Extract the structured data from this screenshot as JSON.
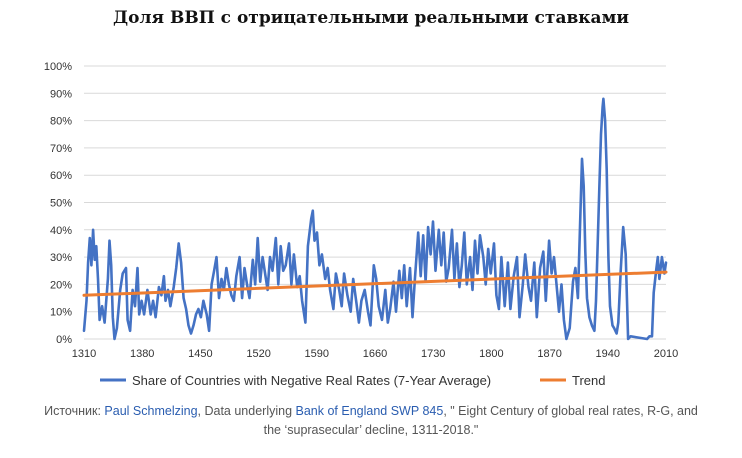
{
  "chart_data": {
    "type": "line",
    "title": "Доля ВВП с отрицательными реальными ставками",
    "xlabel": "",
    "ylabel": "",
    "xlim": [
      1311,
      2018
    ],
    "ylim": [
      0,
      100
    ],
    "x_ticks": [
      "1310",
      "1380",
      "1450",
      "1520",
      "1590",
      "1660",
      "1730",
      "1800",
      "1870",
      "1940",
      "2010"
    ],
    "y_ticks": [
      "0%",
      "10%",
      "20%",
      "30%",
      "40%",
      "50%",
      "60%",
      "70%",
      "80%",
      "90%",
      "100%"
    ],
    "grid": true,
    "legend_position": "bottom",
    "series": [
      {
        "name": "Share of Countries with Negative Real Rates (7-Year Average)",
        "color": "#4472c4",
        "points": [
          [
            1311,
            3
          ],
          [
            1314,
            14
          ],
          [
            1316,
            28
          ],
          [
            1318,
            37
          ],
          [
            1320,
            27
          ],
          [
            1322,
            40
          ],
          [
            1324,
            29
          ],
          [
            1326,
            34
          ],
          [
            1328,
            22
          ],
          [
            1330,
            7
          ],
          [
            1333,
            12
          ],
          [
            1336,
            6
          ],
          [
            1340,
            22
          ],
          [
            1342,
            36
          ],
          [
            1344,
            27
          ],
          [
            1346,
            8
          ],
          [
            1348,
            0
          ],
          [
            1351,
            4
          ],
          [
            1355,
            18
          ],
          [
            1358,
            24
          ],
          [
            1362,
            26
          ],
          [
            1364,
            7
          ],
          [
            1367,
            3
          ],
          [
            1370,
            18
          ],
          [
            1373,
            12
          ],
          [
            1376,
            26
          ],
          [
            1378,
            9
          ],
          [
            1381,
            14
          ],
          [
            1384,
            9
          ],
          [
            1388,
            18
          ],
          [
            1392,
            9
          ],
          [
            1395,
            14
          ],
          [
            1398,
            8
          ],
          [
            1402,
            19
          ],
          [
            1405,
            16
          ],
          [
            1408,
            23
          ],
          [
            1410,
            14
          ],
          [
            1413,
            18
          ],
          [
            1416,
            12
          ],
          [
            1420,
            19
          ],
          [
            1423,
            26
          ],
          [
            1426,
            35
          ],
          [
            1429,
            28
          ],
          [
            1432,
            15
          ],
          [
            1435,
            11
          ],
          [
            1438,
            5
          ],
          [
            1441,
            2
          ],
          [
            1444,
            5
          ],
          [
            1447,
            9
          ],
          [
            1450,
            11
          ],
          [
            1453,
            8
          ],
          [
            1456,
            14
          ],
          [
            1460,
            9
          ],
          [
            1463,
            3
          ],
          [
            1466,
            20
          ],
          [
            1469,
            25
          ],
          [
            1472,
            30
          ],
          [
            1475,
            15
          ],
          [
            1478,
            22
          ],
          [
            1481,
            18
          ],
          [
            1484,
            26
          ],
          [
            1487,
            20
          ],
          [
            1490,
            16
          ],
          [
            1493,
            14
          ],
          [
            1496,
            23
          ],
          [
            1500,
            30
          ],
          [
            1503,
            15
          ],
          [
            1506,
            26
          ],
          [
            1509,
            20
          ],
          [
            1512,
            15
          ],
          [
            1516,
            29
          ],
          [
            1519,
            20
          ],
          [
            1522,
            37
          ],
          [
            1525,
            21
          ],
          [
            1528,
            30
          ],
          [
            1531,
            24
          ],
          [
            1534,
            18
          ],
          [
            1537,
            30
          ],
          [
            1540,
            25
          ],
          [
            1544,
            37
          ],
          [
            1547,
            20
          ],
          [
            1550,
            34
          ],
          [
            1553,
            25
          ],
          [
            1556,
            27
          ],
          [
            1560,
            35
          ],
          [
            1563,
            20
          ],
          [
            1566,
            31
          ],
          [
            1570,
            19
          ],
          [
            1573,
            23
          ],
          [
            1576,
            14
          ],
          [
            1580,
            6
          ],
          [
            1583,
            34
          ],
          [
            1587,
            44
          ],
          [
            1589,
            47
          ],
          [
            1591,
            36
          ],
          [
            1594,
            39
          ],
          [
            1597,
            27
          ],
          [
            1600,
            31
          ],
          [
            1604,
            22
          ],
          [
            1607,
            26
          ],
          [
            1610,
            18
          ],
          [
            1614,
            11
          ],
          [
            1617,
            24
          ],
          [
            1621,
            18
          ],
          [
            1624,
            12
          ],
          [
            1627,
            24
          ],
          [
            1631,
            16
          ],
          [
            1635,
            10
          ],
          [
            1638,
            22
          ],
          [
            1642,
            13
          ],
          [
            1645,
            6
          ],
          [
            1648,
            14
          ],
          [
            1652,
            18
          ],
          [
            1656,
            10
          ],
          [
            1659,
            5
          ],
          [
            1663,
            27
          ],
          [
            1666,
            22
          ],
          [
            1669,
            12
          ],
          [
            1673,
            7
          ],
          [
            1677,
            18
          ],
          [
            1680,
            6
          ],
          [
            1683,
            11
          ],
          [
            1687,
            21
          ],
          [
            1690,
            10
          ],
          [
            1694,
            25
          ],
          [
            1697,
            15
          ],
          [
            1700,
            27
          ],
          [
            1703,
            12
          ],
          [
            1707,
            26
          ],
          [
            1710,
            8
          ],
          [
            1713,
            22
          ],
          [
            1717,
            39
          ],
          [
            1720,
            23
          ],
          [
            1723,
            38
          ],
          [
            1726,
            21
          ],
          [
            1729,
            41
          ],
          [
            1732,
            31
          ],
          [
            1735,
            43
          ],
          [
            1738,
            25
          ],
          [
            1742,
            40
          ],
          [
            1745,
            27
          ],
          [
            1748,
            39
          ],
          [
            1751,
            21
          ],
          [
            1754,
            26
          ],
          [
            1758,
            40
          ],
          [
            1761,
            22
          ],
          [
            1764,
            35
          ],
          [
            1767,
            19
          ],
          [
            1770,
            27
          ],
          [
            1773,
            39
          ],
          [
            1776,
            20
          ],
          [
            1780,
            30
          ],
          [
            1783,
            18
          ],
          [
            1786,
            36
          ],
          [
            1789,
            24
          ],
          [
            1792,
            38
          ],
          [
            1796,
            30
          ],
          [
            1799,
            20
          ],
          [
            1802,
            33
          ],
          [
            1805,
            24
          ],
          [
            1809,
            35
          ],
          [
            1812,
            16
          ],
          [
            1815,
            11
          ],
          [
            1818,
            30
          ],
          [
            1822,
            12
          ],
          [
            1826,
            28
          ],
          [
            1829,
            11
          ],
          [
            1833,
            23
          ],
          [
            1837,
            30
          ],
          [
            1840,
            8
          ],
          [
            1844,
            20
          ],
          [
            1847,
            31
          ],
          [
            1851,
            19
          ],
          [
            1854,
            14
          ],
          [
            1858,
            28
          ],
          [
            1861,
            8
          ],
          [
            1865,
            26
          ],
          [
            1869,
            32
          ],
          [
            1872,
            14
          ],
          [
            1876,
            36
          ],
          [
            1879,
            24
          ],
          [
            1882,
            30
          ],
          [
            1885,
            20
          ],
          [
            1888,
            10
          ],
          [
            1891,
            20
          ],
          [
            1894,
            7
          ],
          [
            1897,
            0
          ],
          [
            1901,
            4
          ],
          [
            1905,
            21
          ],
          [
            1908,
            26
          ],
          [
            1911,
            15
          ],
          [
            1914,
            46
          ],
          [
            1916,
            66
          ],
          [
            1918,
            56
          ],
          [
            1920,
            32
          ],
          [
            1922,
            15
          ],
          [
            1925,
            8
          ],
          [
            1928,
            5
          ],
          [
            1931,
            3
          ],
          [
            1933,
            14
          ],
          [
            1935,
            35
          ],
          [
            1937,
            55
          ],
          [
            1939,
            75
          ],
          [
            1941,
            85
          ],
          [
            1942,
            88
          ],
          [
            1944,
            80
          ],
          [
            1946,
            62
          ],
          [
            1948,
            30
          ],
          [
            1950,
            12
          ],
          [
            1953,
            5
          ],
          [
            1955,
            4
          ],
          [
            1958,
            2
          ],
          [
            1960,
            6
          ],
          [
            1963,
            25
          ],
          [
            1966,
            41
          ],
          [
            1969,
            31
          ],
          [
            1972,
            0
          ],
          [
            1975,
            1
          ],
          [
            1995,
            0
          ],
          [
            1998,
            1
          ],
          [
            2001,
            1
          ],
          [
            2003,
            17
          ],
          [
            2006,
            25
          ],
          [
            2008,
            30
          ],
          [
            2010,
            22
          ],
          [
            2013,
            30
          ],
          [
            2016,
            24
          ],
          [
            2018,
            28
          ]
        ]
      },
      {
        "name": "Trend",
        "color": "#ed7d31",
        "points": [
          [
            1311,
            16
          ],
          [
            2018,
            24.5
          ]
        ]
      }
    ]
  },
  "caption": {
    "prefix": "Источник: ",
    "author_link": "Paul Schmelzing",
    "middle": ", Data underlying ",
    "report_link": "Bank of England SWP 845",
    "suffix": ", \" Eight Century of global real rates, R-G, and the ‘suprasecular’ decline, 1311-2018.\""
  }
}
